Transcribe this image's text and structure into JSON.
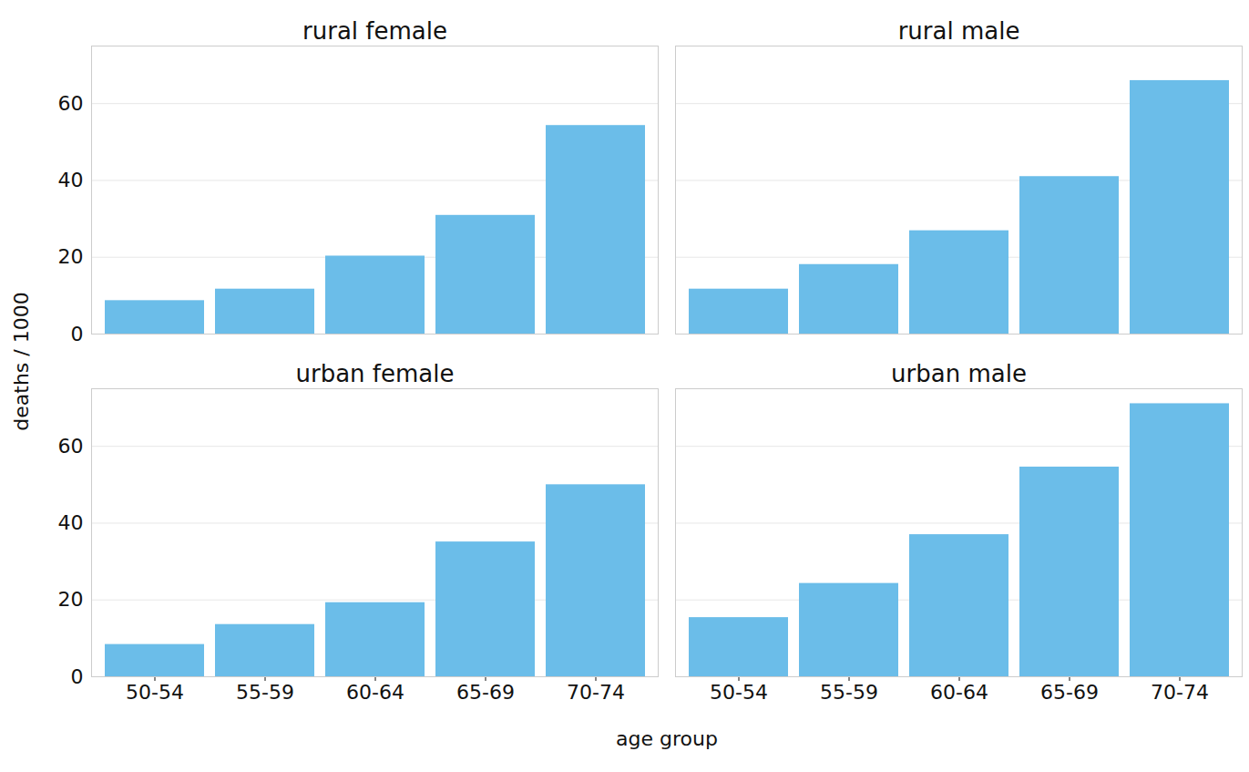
{
  "chart_data": {
    "type": "bar",
    "x_label": "age group",
    "y_label": "deaths / 1000",
    "categories": [
      "50-54",
      "55-59",
      "60-64",
      "65-69",
      "70-74"
    ],
    "series": [
      {
        "name": "rural female",
        "values": [
          8.7,
          11.7,
          20.3,
          30.9,
          54.3
        ]
      },
      {
        "name": "rural male",
        "values": [
          11.7,
          18.1,
          26.9,
          41.0,
          66.0
        ]
      },
      {
        "name": "urban female",
        "values": [
          8.4,
          13.6,
          19.3,
          35.1,
          50.0
        ]
      },
      {
        "name": "urban male",
        "values": [
          15.4,
          24.3,
          37.0,
          54.6,
          71.1
        ]
      }
    ],
    "color": "#6bbde9",
    "ylim": [
      0,
      75
    ],
    "yticks": [
      0,
      20,
      40,
      60
    ],
    "grid": true
  }
}
